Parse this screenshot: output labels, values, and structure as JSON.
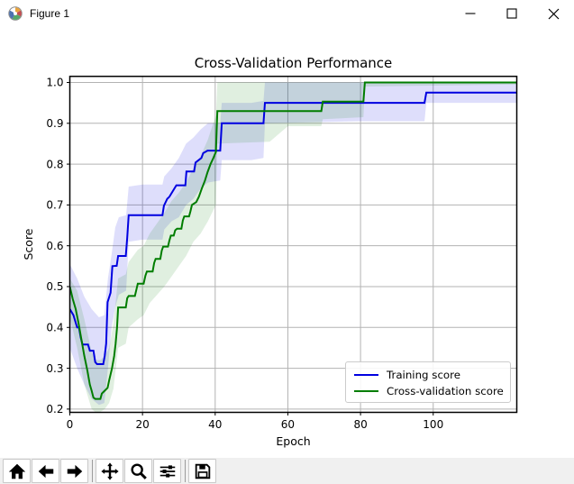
{
  "window": {
    "title": "Figure 1",
    "controls": {
      "minimize": "minimize",
      "maximize": "maximize",
      "close": "close"
    }
  },
  "chart_data": {
    "type": "line",
    "title": "Cross-Validation Performance",
    "xlabel": "Epoch",
    "ylabel": "Score",
    "xlim": [
      0,
      123
    ],
    "ylim": [
      0.192,
      1.015
    ],
    "x_ticks": [
      0,
      20,
      40,
      60,
      80,
      100
    ],
    "y_ticks": [
      0.2,
      0.3,
      0.4,
      0.5,
      0.6,
      0.7,
      0.8,
      0.9,
      1.0
    ],
    "grid": true,
    "grid_color": "#b3b3b3",
    "legend_position": "lower right",
    "series": [
      {
        "name": "Training score",
        "color": "#0000e0",
        "band_opacity": 0.13,
        "points": [
          [
            0,
            0.445
          ],
          [
            1,
            0.43
          ],
          [
            2,
            0.4
          ],
          [
            2.5,
            0.4
          ],
          [
            3,
            0.375
          ],
          [
            3.5,
            0.358
          ],
          [
            5,
            0.358
          ],
          [
            5.5,
            0.343
          ],
          [
            6.5,
            0.343
          ],
          [
            7,
            0.315
          ],
          [
            7.5,
            0.31
          ],
          [
            9.2,
            0.31
          ],
          [
            9.6,
            0.33
          ],
          [
            10,
            0.36
          ],
          [
            10.4,
            0.462
          ],
          [
            11.2,
            0.485
          ],
          [
            11.7,
            0.55
          ],
          [
            12.9,
            0.551
          ],
          [
            13.3,
            0.575
          ],
          [
            15.4,
            0.575
          ],
          [
            15.8,
            0.62
          ],
          [
            16.2,
            0.675
          ],
          [
            25.5,
            0.675
          ],
          [
            25.9,
            0.698
          ],
          [
            26.8,
            0.715
          ],
          [
            27.4,
            0.72
          ],
          [
            29.3,
            0.748
          ],
          [
            31.8,
            0.748
          ],
          [
            32.1,
            0.782
          ],
          [
            34.2,
            0.782
          ],
          [
            34.6,
            0.804
          ],
          [
            36.2,
            0.815
          ],
          [
            36.7,
            0.827
          ],
          [
            37.9,
            0.833
          ],
          [
            41.4,
            0.833
          ],
          [
            41.8,
            0.9
          ],
          [
            53.3,
            0.9
          ],
          [
            53.7,
            0.95
          ],
          [
            97.6,
            0.95
          ],
          [
            98.1,
            0.975
          ],
          [
            123,
            0.975
          ]
        ],
        "band": [
          [
            0,
            0.35,
            0.555
          ],
          [
            2,
            0.3,
            0.52
          ],
          [
            4,
            0.26,
            0.475
          ],
          [
            6,
            0.225,
            0.445
          ],
          [
            8,
            0.21,
            0.425
          ],
          [
            9.5,
            0.215,
            0.43
          ],
          [
            10.5,
            0.3,
            0.52
          ],
          [
            11.5,
            0.4,
            0.58
          ],
          [
            12.5,
            0.45,
            0.645
          ],
          [
            13.5,
            0.48,
            0.67
          ],
          [
            15.5,
            0.49,
            0.675
          ],
          [
            16.2,
            0.61,
            0.745
          ],
          [
            20,
            0.615,
            0.75
          ],
          [
            25.5,
            0.615,
            0.75
          ],
          [
            26,
            0.64,
            0.77
          ],
          [
            28,
            0.66,
            0.79
          ],
          [
            30,
            0.67,
            0.815
          ],
          [
            32,
            0.7,
            0.85
          ],
          [
            34,
            0.715,
            0.865
          ],
          [
            36,
            0.74,
            0.885
          ],
          [
            38,
            0.755,
            0.9
          ],
          [
            41.4,
            0.76,
            0.9
          ],
          [
            41.8,
            0.81,
            0.95
          ],
          [
            50,
            0.81,
            0.95
          ],
          [
            53.3,
            0.815,
            0.955
          ],
          [
            53.7,
            0.9,
            1.0
          ],
          [
            80,
            0.905,
            1.0
          ],
          [
            97.6,
            0.905,
            1.0
          ],
          [
            98.1,
            0.95,
            1.0
          ],
          [
            123,
            0.95,
            1.0
          ]
        ]
      },
      {
        "name": "Cross-validation score",
        "color": "#007d00",
        "band_opacity": 0.12,
        "points": [
          [
            0,
            0.5
          ],
          [
            0.8,
            0.47
          ],
          [
            1.6,
            0.445
          ],
          [
            2.4,
            0.41
          ],
          [
            3.2,
            0.37
          ],
          [
            4,
            0.33
          ],
          [
            4.8,
            0.295
          ],
          [
            5.5,
            0.26
          ],
          [
            6,
            0.245
          ],
          [
            6.5,
            0.228
          ],
          [
            7,
            0.225
          ],
          [
            8.4,
            0.225
          ],
          [
            8.8,
            0.238
          ],
          [
            9.6,
            0.245
          ],
          [
            10.4,
            0.252
          ],
          [
            10.8,
            0.27
          ],
          [
            11.6,
            0.3
          ],
          [
            12.2,
            0.33
          ],
          [
            12.6,
            0.36
          ],
          [
            13,
            0.4
          ],
          [
            13.3,
            0.449
          ],
          [
            15.4,
            0.449
          ],
          [
            15.8,
            0.472
          ],
          [
            16.2,
            0.477
          ],
          [
            17.9,
            0.477
          ],
          [
            18.3,
            0.492
          ],
          [
            18.7,
            0.507
          ],
          [
            20.3,
            0.507
          ],
          [
            20.8,
            0.527
          ],
          [
            21.2,
            0.537
          ],
          [
            22.8,
            0.537
          ],
          [
            23.2,
            0.558
          ],
          [
            23.6,
            0.568
          ],
          [
            24.9,
            0.568
          ],
          [
            25.3,
            0.588
          ],
          [
            25.7,
            0.598
          ],
          [
            27,
            0.598
          ],
          [
            27.4,
            0.613
          ],
          [
            27.8,
            0.625
          ],
          [
            28.6,
            0.625
          ],
          [
            29,
            0.638
          ],
          [
            29.5,
            0.642
          ],
          [
            30.7,
            0.642
          ],
          [
            31.1,
            0.662
          ],
          [
            31.5,
            0.672
          ],
          [
            32.8,
            0.672
          ],
          [
            33.2,
            0.685
          ],
          [
            33.6,
            0.7
          ],
          [
            34.8,
            0.707
          ],
          [
            35.5,
            0.72
          ],
          [
            36.3,
            0.74
          ],
          [
            37.2,
            0.76
          ],
          [
            37.9,
            0.78
          ],
          [
            38.7,
            0.8
          ],
          [
            39.5,
            0.815
          ],
          [
            40.2,
            0.83
          ],
          [
            40.6,
            0.93
          ],
          [
            69.2,
            0.93
          ],
          [
            69.6,
            0.953
          ],
          [
            80.8,
            0.953
          ],
          [
            81.2,
            1.0
          ],
          [
            123,
            1.0
          ]
        ],
        "band": [
          [
            0,
            0.425,
            0.52
          ],
          [
            2,
            0.35,
            0.49
          ],
          [
            4,
            0.26,
            0.42
          ],
          [
            6,
            0.2,
            0.34
          ],
          [
            7,
            0.193,
            0.32
          ],
          [
            8.4,
            0.193,
            0.32
          ],
          [
            9.6,
            0.2,
            0.33
          ],
          [
            10.8,
            0.215,
            0.35
          ],
          [
            12,
            0.25,
            0.41
          ],
          [
            13.3,
            0.35,
            0.52
          ],
          [
            15.4,
            0.36,
            0.53
          ],
          [
            16.2,
            0.4,
            0.56
          ],
          [
            18.7,
            0.42,
            0.59
          ],
          [
            20.3,
            0.43,
            0.6
          ],
          [
            22,
            0.46,
            0.63
          ],
          [
            24,
            0.48,
            0.655
          ],
          [
            26,
            0.5,
            0.68
          ],
          [
            28,
            0.525,
            0.71
          ],
          [
            30,
            0.55,
            0.73
          ],
          [
            32,
            0.575,
            0.755
          ],
          [
            34,
            0.61,
            0.79
          ],
          [
            36,
            0.63,
            0.82
          ],
          [
            38,
            0.66,
            0.86
          ],
          [
            40.2,
            0.7,
            0.92
          ],
          [
            40.6,
            0.85,
            1.0
          ],
          [
            55,
            0.855,
            1.0
          ],
          [
            60,
            0.893,
            1.0
          ],
          [
            69.2,
            0.893,
            1.0
          ],
          [
            69.6,
            0.91,
            1.0
          ],
          [
            80.8,
            0.915,
            1.0
          ],
          [
            81.2,
            0.99,
            1.0
          ],
          [
            123,
            0.995,
            1.0
          ]
        ]
      }
    ]
  },
  "toolbar": {
    "buttons": [
      "home",
      "back",
      "forward",
      "pan",
      "zoom-to-rect",
      "configure-subplots",
      "save"
    ]
  }
}
